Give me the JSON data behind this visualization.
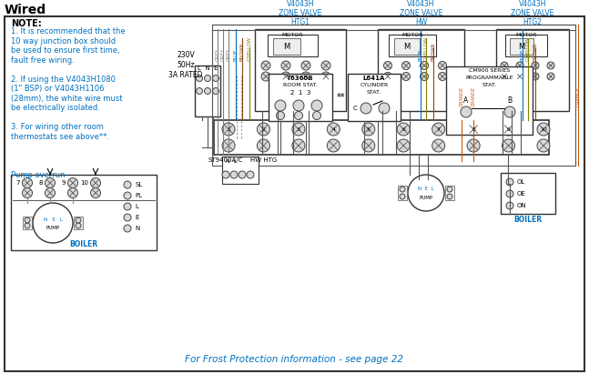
{
  "title": "Wired",
  "bg_color": "#ffffff",
  "border_color": "#000000",
  "note_text": "NOTE:",
  "note_lines": [
    "1. It is recommended that the",
    "10 way junction box should",
    "be used to ensure first time,",
    "fault free wiring.",
    "",
    "2. If using the V4043H1080",
    "(1\" BSP) or V4043H1106",
    "(28mm), the white wire must",
    "be electrically isolated.",
    "",
    "3. For wiring other room",
    "thermostats see above**."
  ],
  "pump_overrun_label": "Pump overrun",
  "zone_valve_1_line1": "V4043H",
  "zone_valve_1_line2": "ZONE VALVE",
  "zone_valve_1_line3": "HTG1",
  "zone_valve_2_line1": "V4043H",
  "zone_valve_2_line2": "ZONE VALVE",
  "zone_valve_2_line3": "HW",
  "zone_valve_3_line1": "V4043H",
  "zone_valve_3_line2": "ZONE VALVE",
  "zone_valve_3_line3": "HTG2",
  "frost_text": "For Frost Protection information - see page 22",
  "color_blue": "#0070c0",
  "color_orange": "#c55a11",
  "color_grey": "#808080",
  "color_brown": "#8B4513",
  "color_gyellow": "#7f7f00",
  "color_black": "#000000",
  "color_title_black": "#000000",
  "color_boiler_blue": "#0070c0"
}
